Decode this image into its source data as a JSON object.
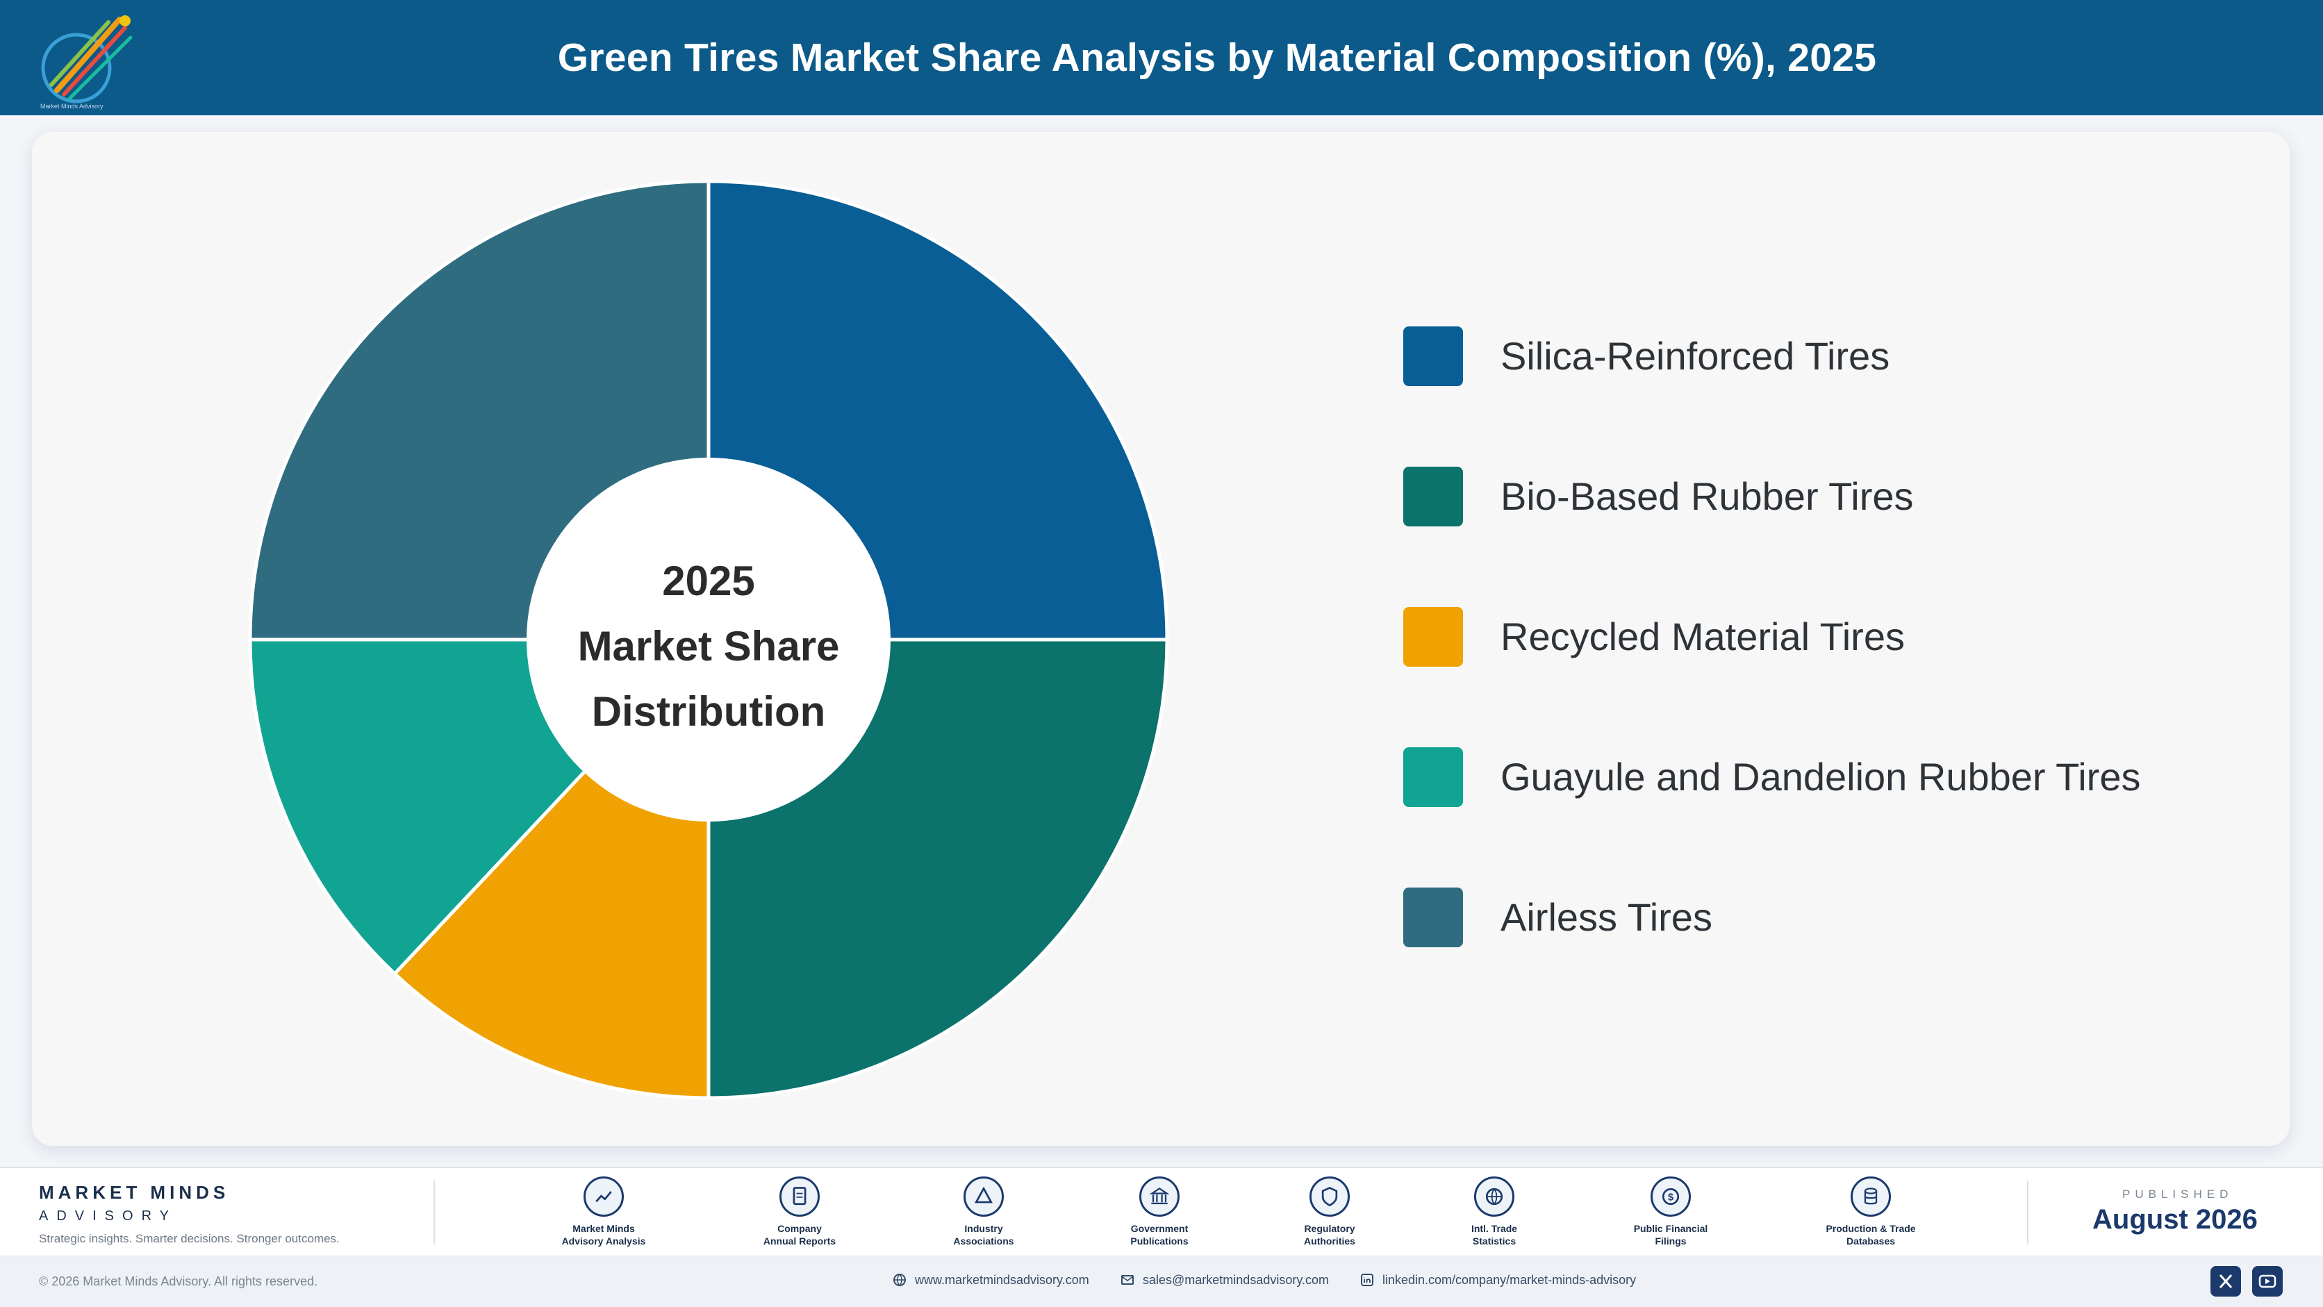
{
  "title": "Green Tires Market Share Analysis by Material Composition (%), 2025",
  "logo": {
    "text": "Market Minds Advisory"
  },
  "chart_data": {
    "type": "pie",
    "style": "donut",
    "center_label": [
      "2025",
      "Market Share",
      "Distribution"
    ],
    "categories": [
      "Silica-Reinforced Tires",
      "Bio-Based Rubber Tires",
      "Recycled Material Tires",
      "Guayule and Dandelion Rubber Tires",
      "Airless Tires"
    ],
    "values": [
      25,
      25,
      12,
      13,
      25
    ],
    "colors": [
      "#085e95",
      "#0b726c",
      "#f0a202",
      "#12a493",
      "#2f6c80"
    ],
    "legend_position": "right"
  },
  "footer": {
    "brand_name": "MARKET MINDS",
    "brand_sub": "ADVISORY",
    "tagline": "Strategic insights. Smarter decisions. Stronger outcomes.",
    "sources": [
      {
        "line1": "Market Minds",
        "line2": "Advisory Analysis",
        "icon": "trend-icon"
      },
      {
        "line1": "Company",
        "line2": "Annual Reports",
        "icon": "document-icon"
      },
      {
        "line1": "Industry",
        "line2": "Associations",
        "icon": "network-icon"
      },
      {
        "line1": "Government",
        "line2": "Publications",
        "icon": "government-icon"
      },
      {
        "line1": "Regulatory",
        "line2": "Authorities",
        "icon": "shield-icon"
      },
      {
        "line1": "Intl. Trade",
        "line2": "Statistics",
        "icon": "globe-icon"
      },
      {
        "line1": "Public Financial",
        "line2": "Filings",
        "icon": "dollar-icon"
      },
      {
        "line1": "Production & Trade",
        "line2": "Databases",
        "icon": "database-icon"
      }
    ],
    "published_label": "PUBLISHED",
    "published_date": "August 2026",
    "copyright": "© 2026 Market Minds Advisory. All rights reserved.",
    "website": "www.marketmindsadvisory.com",
    "email": "sales@marketmindsadvisory.com",
    "linkedin": "linkedin.com/company/market-minds-advisory"
  }
}
